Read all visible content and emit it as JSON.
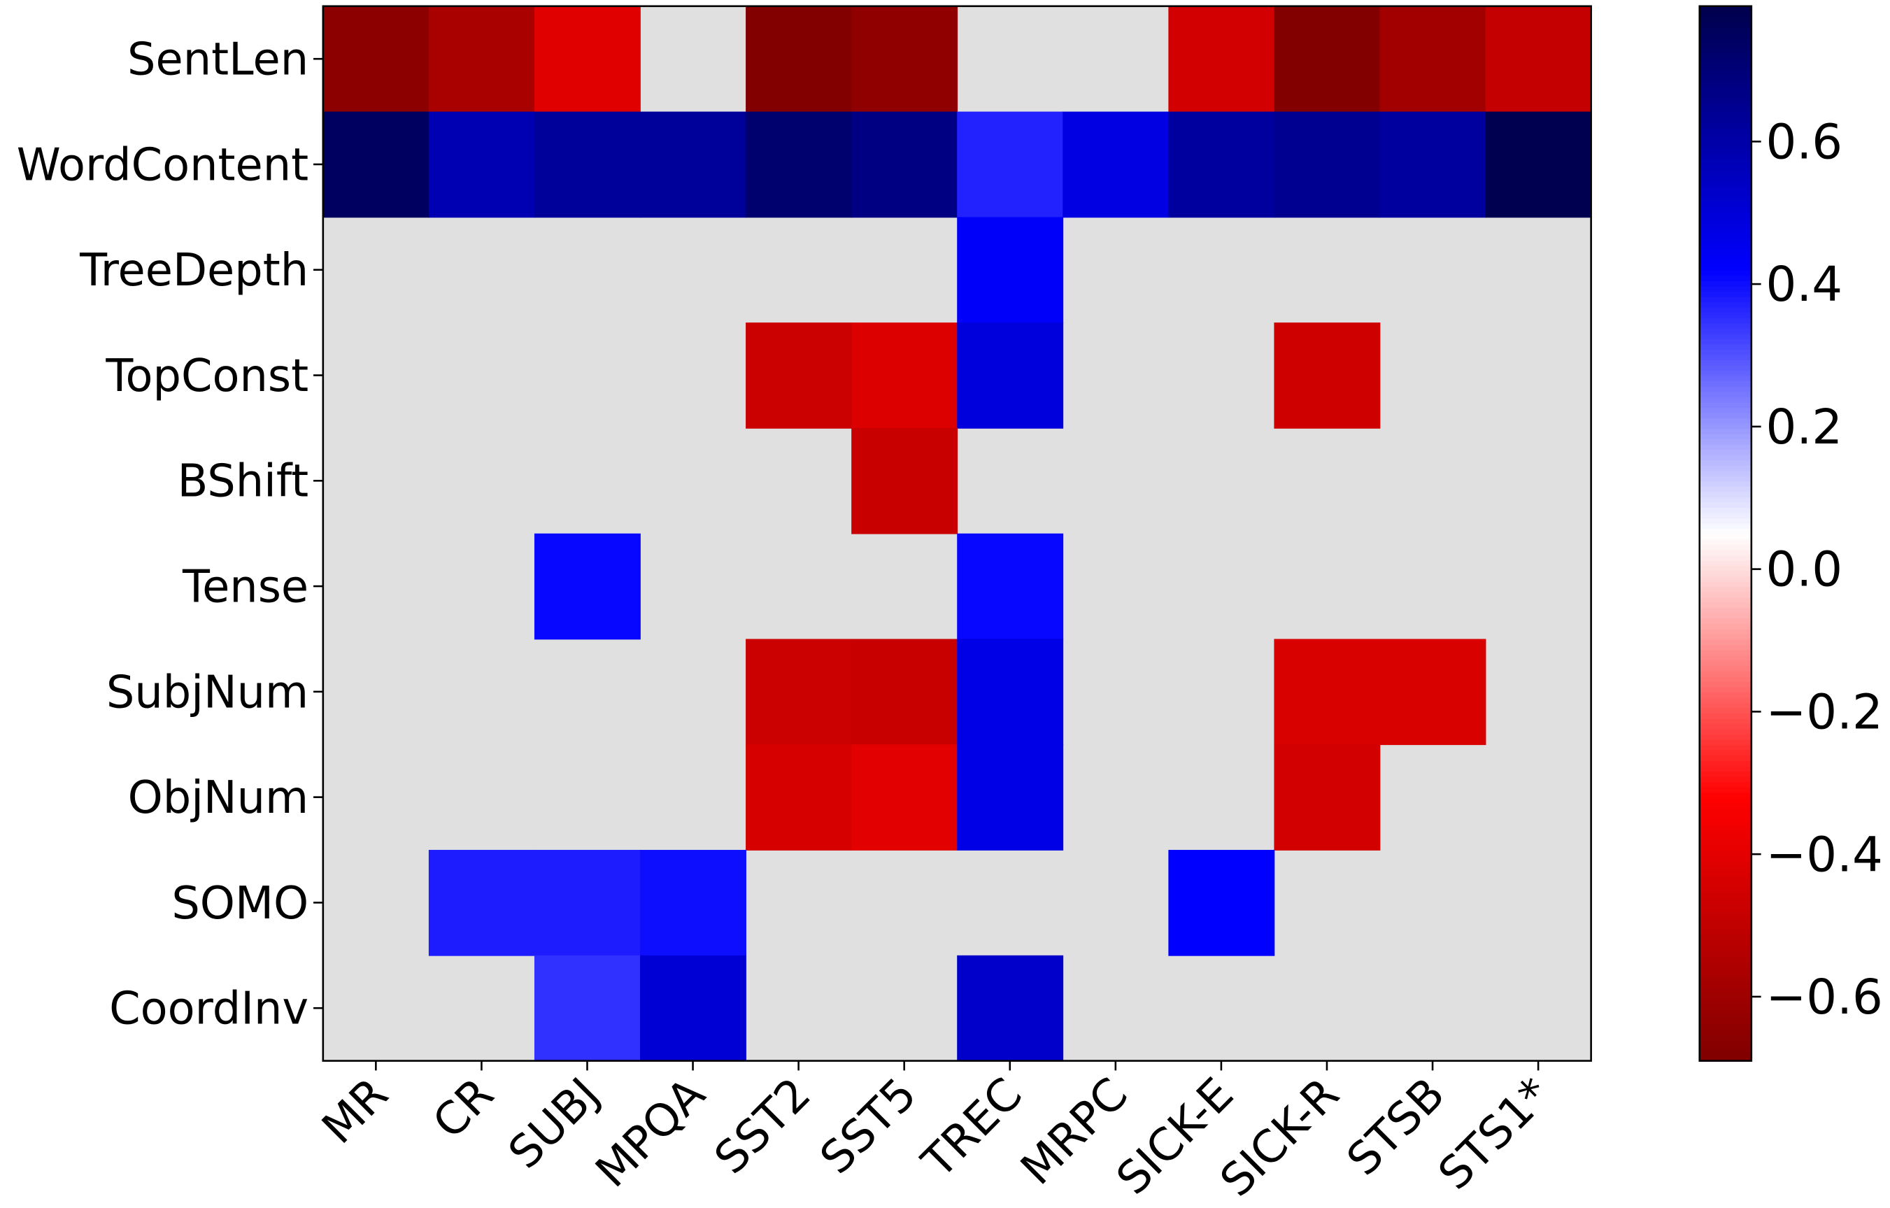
{
  "chart_data": {
    "type": "heatmap",
    "x_categories": [
      "MR",
      "CR",
      "SUBJ",
      "MPQA",
      "SST2",
      "SST5",
      "TREC",
      "MRPC",
      "SICK-E",
      "SICK-R",
      "STSB",
      "STS1*"
    ],
    "y_categories": [
      "SentLen",
      "WordContent",
      "TreeDepth",
      "TopConst",
      "BShift",
      "Tense",
      "SubjNum",
      "ObjNum",
      "SOMO",
      "CoordInv"
    ],
    "values": [
      [
        -0.65,
        -0.57,
        -0.41,
        null,
        -0.68,
        -0.64,
        null,
        null,
        -0.45,
        -0.68,
        -0.59,
        -0.49
      ],
      [
        0.75,
        0.58,
        0.63,
        0.63,
        0.72,
        0.68,
        0.37,
        0.48,
        0.62,
        0.65,
        0.62,
        0.78
      ],
      [
        null,
        null,
        null,
        null,
        null,
        null,
        0.43,
        null,
        null,
        null,
        null,
        null
      ],
      [
        null,
        null,
        null,
        null,
        -0.47,
        -0.42,
        0.49,
        null,
        null,
        -0.46,
        null,
        null
      ],
      [
        null,
        null,
        null,
        null,
        null,
        -0.48,
        null,
        null,
        null,
        null,
        null,
        null
      ],
      [
        null,
        null,
        0.41,
        null,
        null,
        null,
        0.41,
        null,
        null,
        null,
        null,
        null
      ],
      [
        null,
        null,
        null,
        null,
        -0.47,
        -0.48,
        0.47,
        null,
        null,
        -0.43,
        -0.43,
        null
      ],
      [
        null,
        null,
        null,
        null,
        -0.44,
        -0.4,
        0.47,
        null,
        null,
        -0.45,
        null,
        null
      ],
      [
        null,
        0.38,
        0.38,
        0.4,
        null,
        null,
        null,
        null,
        0.42,
        null,
        null,
        null
      ],
      [
        null,
        null,
        0.35,
        0.51,
        null,
        null,
        0.53,
        null,
        null,
        null,
        null,
        null
      ]
    ],
    "colormap": "seismic_r",
    "nan_color": "#e0e0e0",
    "clim": [
      -0.69,
      0.79
    ],
    "cticks": [
      0.6,
      0.4,
      0.2,
      {
        "value": 0,
        "label": "0.0"
      },
      {
        "value": -0.2,
        "label": "−0.2"
      },
      {
        "value": -0.4,
        "label": "−0.4"
      },
      {
        "value": -0.6,
        "label": "−0.6"
      }
    ]
  }
}
